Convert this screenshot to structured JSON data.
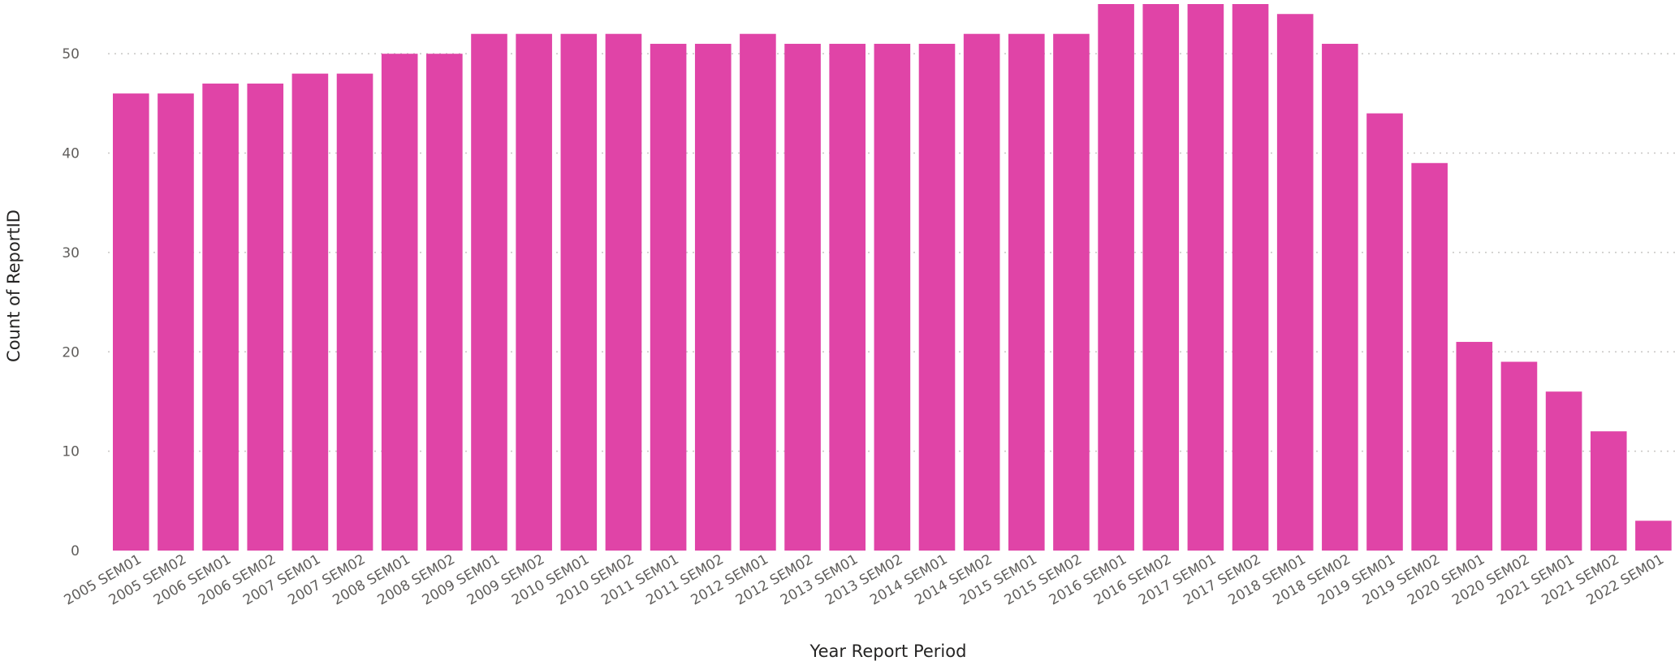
{
  "chart_data": {
    "type": "bar",
    "xlabel": "Year Report Period",
    "ylabel": "Count of ReportID",
    "ylim": [
      0,
      55
    ],
    "yticks": [
      0,
      10,
      20,
      30,
      40,
      50
    ],
    "grid": true,
    "bar_color": "#E044A7",
    "categories": [
      "2005 SEM01",
      "2005 SEM02",
      "2006 SEM01",
      "2006 SEM02",
      "2007 SEM01",
      "2007 SEM02",
      "2008 SEM01",
      "2008 SEM02",
      "2009 SEM01",
      "2009 SEM02",
      "2010 SEM01",
      "2010 SEM02",
      "2011 SEM01",
      "2011 SEM02",
      "2012 SEM01",
      "2012 SEM02",
      "2013 SEM01",
      "2013 SEM02",
      "2014 SEM01",
      "2014 SEM02",
      "2015 SEM01",
      "2015 SEM02",
      "2016 SEM01",
      "2016 SEM02",
      "2017 SEM01",
      "2017 SEM02",
      "2018 SEM01",
      "2018 SEM02",
      "2019 SEM01",
      "2019 SEM02",
      "2020 SEM01",
      "2020 SEM02",
      "2021 SEM01",
      "2021 SEM02",
      "2022 SEM01"
    ],
    "values": [
      46,
      46,
      47,
      47,
      48,
      48,
      50,
      50,
      52,
      52,
      52,
      52,
      51,
      51,
      52,
      51,
      51,
      51,
      51,
      52,
      52,
      52,
      55,
      55,
      55,
      55,
      54,
      51,
      44,
      39,
      21,
      19,
      16,
      12,
      3
    ]
  }
}
